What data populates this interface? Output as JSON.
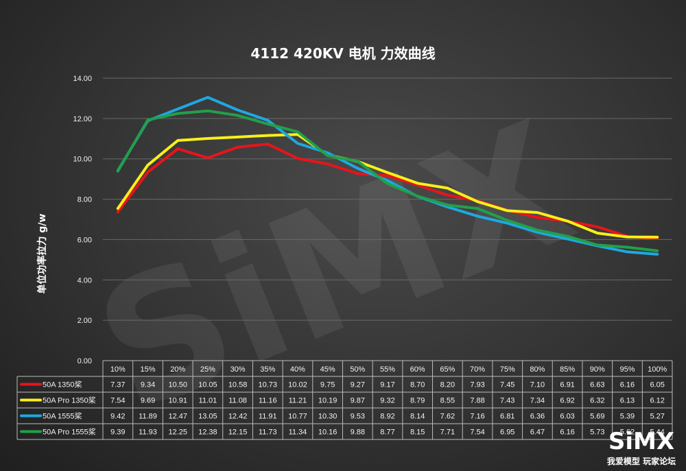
{
  "chart_data": {
    "type": "line",
    "title": "4112 420KV 电机 力效曲线",
    "ylabel": "单位功率拉力 g/w",
    "xlabel": "",
    "ylim": [
      0,
      14
    ],
    "yticks": [
      "0.00",
      "2.00",
      "4.00",
      "6.00",
      "8.00",
      "10.00",
      "12.00",
      "14.00"
    ],
    "grid": true,
    "categories": [
      "10%",
      "15%",
      "20%",
      "25%",
      "30%",
      "35%",
      "40%",
      "45%",
      "50%",
      "55%",
      "60%",
      "65%",
      "70%",
      "75%",
      "80%",
      "85%",
      "90%",
      "95%",
      "100%"
    ],
    "series": [
      {
        "name": "50A 1350桨",
        "color": "#e8141c",
        "values": [
          7.37,
          9.34,
          10.5,
          10.05,
          10.58,
          10.73,
          10.02,
          9.75,
          9.27,
          9.17,
          8.7,
          8.2,
          7.93,
          7.45,
          7.1,
          6.91,
          6.63,
          6.16,
          6.05
        ],
        "labels": [
          "7.37",
          "9.34",
          "10.50",
          "10.05",
          "10.58",
          "10.73",
          "10.02",
          "9.75",
          "9.27",
          "9.17",
          "8.70",
          "8.20",
          "7.93",
          "7.45",
          "7.10",
          "6.91",
          "6.63",
          "6.16",
          "6.05"
        ]
      },
      {
        "name": "50A Pro 1350桨",
        "color": "#f8f018",
        "values": [
          7.54,
          9.69,
          10.91,
          11.01,
          11.08,
          11.16,
          11.21,
          10.19,
          9.87,
          9.32,
          8.79,
          8.55,
          7.88,
          7.43,
          7.34,
          6.92,
          6.32,
          6.13,
          6.12
        ],
        "labels": [
          "7.54",
          "9.69",
          "10.91",
          "11.01",
          "11.08",
          "11.16",
          "11.21",
          "10.19",
          "9.87",
          "9.32",
          "8.79",
          "8.55",
          "7.88",
          "7.43",
          "7.34",
          "6.92",
          "6.32",
          "6.13",
          "6.12"
        ]
      },
      {
        "name": "50A 1555桨",
        "color": "#1ea8e0",
        "values": [
          9.42,
          11.89,
          12.47,
          13.05,
          12.42,
          11.91,
          10.77,
          10.3,
          9.53,
          8.92,
          8.14,
          7.62,
          7.16,
          6.81,
          6.36,
          6.03,
          5.69,
          5.39,
          5.27
        ],
        "labels": [
          "9.42",
          "11.89",
          "12.47",
          "13.05",
          "12.42",
          "11.91",
          "10.77",
          "10.30",
          "9.53",
          "8.92",
          "8.14",
          "7.62",
          "7.16",
          "6.81",
          "6.36",
          "6.03",
          "5.69",
          "5.39",
          "5.27"
        ]
      },
      {
        "name": "50A Pro 1555桨",
        "color": "#22a04a",
        "values": [
          9.39,
          11.93,
          12.25,
          12.38,
          12.15,
          11.73,
          11.34,
          10.16,
          9.88,
          8.77,
          8.15,
          7.71,
          7.54,
          6.95,
          6.47,
          6.16,
          5.73,
          5.62,
          5.44
        ],
        "labels": [
          "9.39",
          "11.93",
          "12.25",
          "12.38",
          "12.15",
          "11.73",
          "11.34",
          "10.16",
          "9.88",
          "8.77",
          "8.15",
          "7.71",
          "7.54",
          "6.95",
          "6.47",
          "6.16",
          "5.73",
          "5.62",
          "5.44"
        ]
      }
    ]
  },
  "watermark": {
    "text": "SiMX"
  },
  "logo": {
    "main": "SiMX",
    "sub": "我爱模型 玩家论坛"
  }
}
